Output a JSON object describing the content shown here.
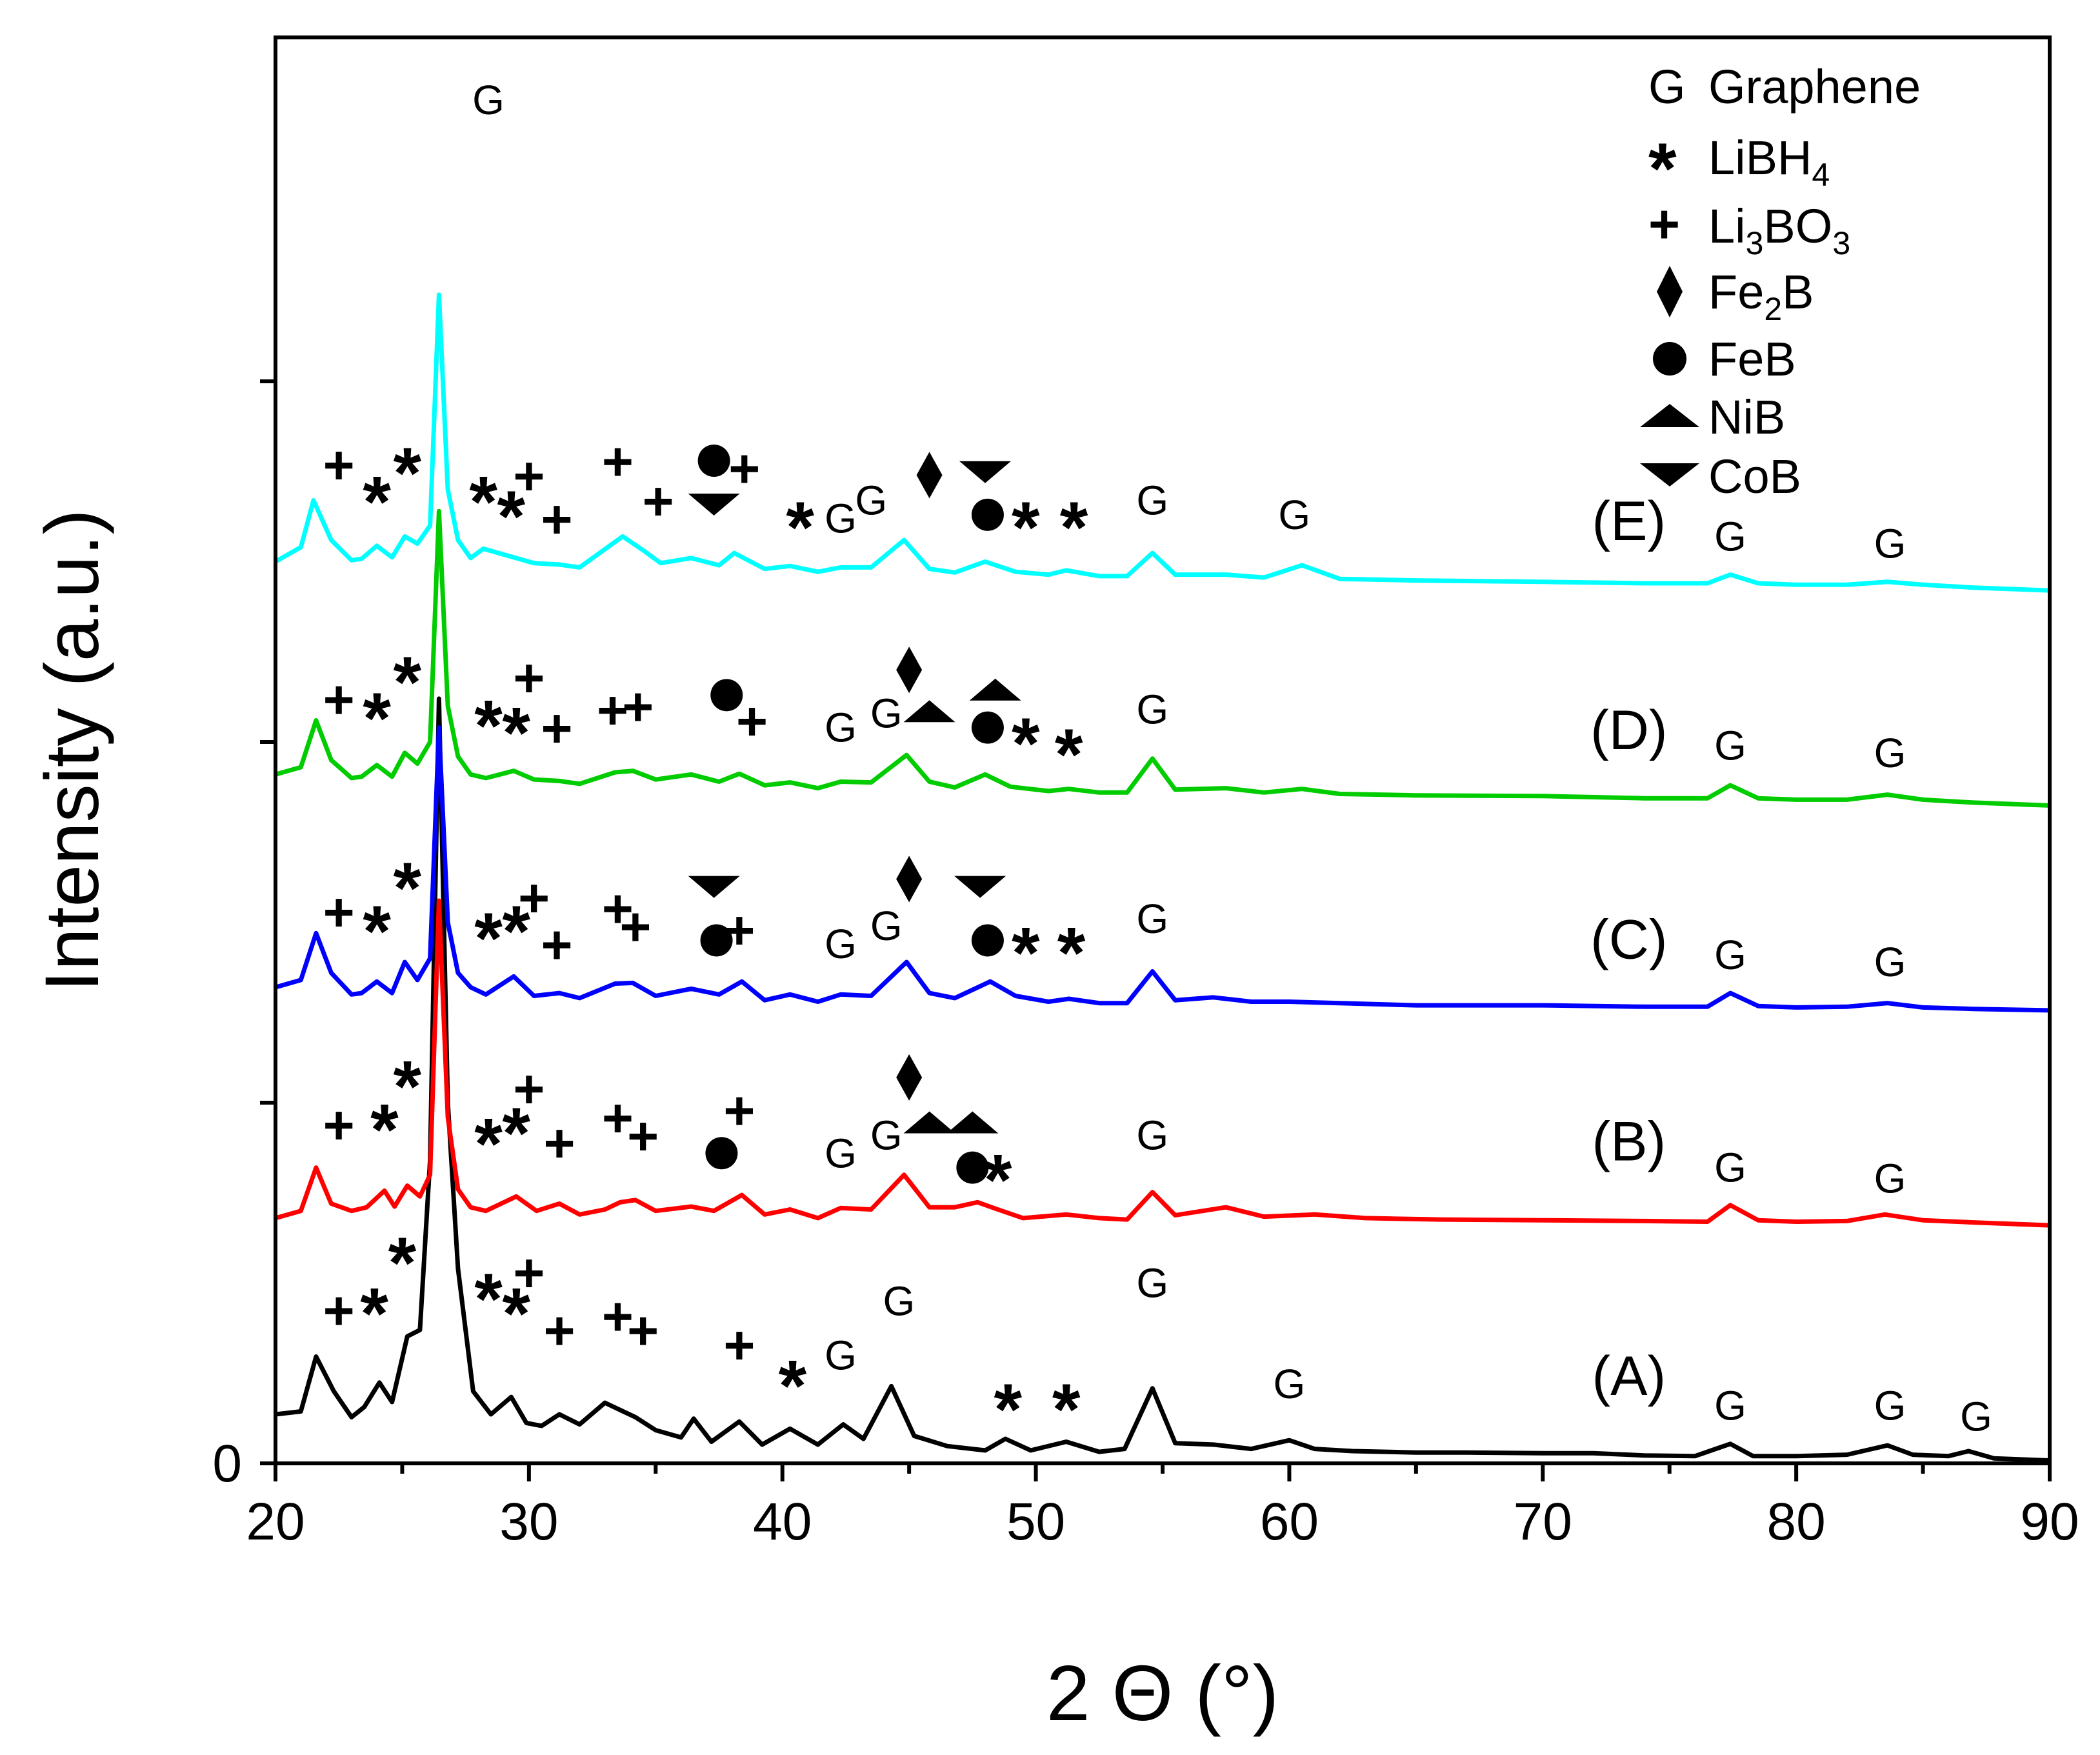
{
  "chart_data": {
    "type": "line",
    "title": "",
    "xlabel": "2 Θ (°)",
    "ylabel": "Intensity (a.u.)",
    "xlim": [
      20,
      90
    ],
    "xticks": [
      20,
      30,
      40,
      50,
      60,
      70,
      80,
      90
    ],
    "ytick_labels": [
      "0"
    ],
    "series": [
      {
        "name": "(A)",
        "color": "#000000",
        "baseline": 0.0,
        "x": [
          20,
          21,
          21.6,
          22.3,
          23,
          23.5,
          24.1,
          24.6,
          25.2,
          25.7,
          26.1,
          26.45,
          26.8,
          27.2,
          27.8,
          28.5,
          29.3,
          29.9,
          30.5,
          31.2,
          32,
          33,
          33.6,
          34.2,
          35,
          36,
          36.5,
          37.2,
          38.3,
          39.2,
          40.3,
          41.4,
          42.4,
          43.2,
          44.3,
          45.2,
          46.5,
          48,
          48.8,
          49.8,
          51.2,
          52.5,
          53.5,
          54.6,
          55.5,
          57,
          58.5,
          60,
          61,
          62.5,
          65,
          67,
          70,
          72,
          74,
          76,
          77.4,
          78.3,
          80,
          82,
          83.6,
          84.6,
          86,
          86.8,
          87.8,
          90
        ],
        "y": [
          0.068,
          0.072,
          0.148,
          0.1,
          0.064,
          0.078,
          0.112,
          0.085,
          0.176,
          0.185,
          0.42,
          1.06,
          0.5,
          0.27,
          0.1,
          0.068,
          0.092,
          0.056,
          0.052,
          0.068,
          0.054,
          0.084,
          0.074,
          0.064,
          0.046,
          0.036,
          0.062,
          0.03,
          0.058,
          0.026,
          0.048,
          0.026,
          0.054,
          0.034,
          0.107,
          0.038,
          0.024,
          0.018,
          0.034,
          0.018,
          0.03,
          0.016,
          0.02,
          0.104,
          0.028,
          0.026,
          0.02,
          0.032,
          0.02,
          0.017,
          0.015,
          0.015,
          0.014,
          0.014,
          0.011,
          0.01,
          0.027,
          0.01,
          0.01,
          0.012,
          0.025,
          0.012,
          0.01,
          0.017,
          0.007,
          0.004
        ]
      },
      {
        "name": "(B)",
        "color": "#ff0000",
        "baseline": 0.34,
        "x": [
          20,
          21,
          21.6,
          22.2,
          23,
          23.6,
          24.3,
          24.7,
          25.2,
          25.7,
          26.1,
          26.45,
          26.8,
          27.2,
          27.7,
          28.3,
          29.5,
          30.3,
          31.2,
          32,
          33,
          33.6,
          34.2,
          35,
          36.4,
          37.3,
          38.4,
          39.3,
          40.3,
          41.4,
          42.3,
          43.5,
          44.8,
          45.8,
          46.8,
          47.7,
          48.5,
          49.5,
          51.2,
          52.5,
          53.6,
          54.6,
          55.5,
          57.5,
          59,
          61,
          63,
          66,
          70,
          74,
          76.5,
          77.4,
          78.5,
          80,
          82,
          83.5,
          85,
          87,
          90
        ],
        "y": [
          0.34,
          0.35,
          0.41,
          0.36,
          0.35,
          0.355,
          0.378,
          0.356,
          0.385,
          0.37,
          0.4,
          0.78,
          0.48,
          0.38,
          0.355,
          0.35,
          0.37,
          0.35,
          0.36,
          0.345,
          0.352,
          0.362,
          0.365,
          0.35,
          0.356,
          0.35,
          0.372,
          0.345,
          0.352,
          0.34,
          0.354,
          0.352,
          0.4,
          0.355,
          0.355,
          0.362,
          0.352,
          0.34,
          0.345,
          0.34,
          0.338,
          0.376,
          0.344,
          0.355,
          0.342,
          0.345,
          0.34,
          0.338,
          0.337,
          0.336,
          0.335,
          0.358,
          0.337,
          0.335,
          0.336,
          0.345,
          0.337,
          0.334,
          0.33
        ]
      },
      {
        "name": "(C)",
        "color": "#0000ff",
        "baseline": 0.62,
        "x": [
          20,
          21,
          21.6,
          22.2,
          23,
          23.4,
          24,
          24.6,
          25.1,
          25.6,
          26.1,
          26.45,
          26.8,
          27.2,
          27.7,
          28.3,
          29.4,
          30.2,
          31.2,
          32,
          33.4,
          34.1,
          35,
          36.4,
          37.5,
          38.4,
          39.3,
          40.3,
          41.4,
          42.3,
          43.5,
          44.9,
          45.8,
          46.8,
          48.2,
          49.2,
          50.5,
          51.3,
          52.5,
          53.6,
          54.6,
          55.5,
          57,
          58.5,
          60,
          62,
          65,
          70,
          74,
          76.5,
          77.4,
          78.5,
          80,
          82,
          83.6,
          85,
          87,
          90
        ],
        "y": [
          0.66,
          0.67,
          0.735,
          0.68,
          0.65,
          0.652,
          0.668,
          0.652,
          0.695,
          0.67,
          0.7,
          1.02,
          0.75,
          0.68,
          0.66,
          0.65,
          0.675,
          0.648,
          0.652,
          0.645,
          0.665,
          0.666,
          0.648,
          0.658,
          0.65,
          0.668,
          0.642,
          0.65,
          0.64,
          0.65,
          0.648,
          0.695,
          0.652,
          0.645,
          0.668,
          0.648,
          0.64,
          0.644,
          0.638,
          0.638,
          0.682,
          0.642,
          0.646,
          0.64,
          0.64,
          0.638,
          0.635,
          0.635,
          0.633,
          0.633,
          0.652,
          0.634,
          0.632,
          0.633,
          0.638,
          0.632,
          0.63,
          0.628
        ]
      },
      {
        "name": "(D)",
        "color": "#00cc00",
        "baseline": 0.9,
        "x": [
          20,
          21,
          21.6,
          22.2,
          23,
          23.4,
          24,
          24.6,
          25.1,
          25.6,
          26.1,
          26.45,
          26.8,
          27.2,
          27.7,
          28.3,
          29.4,
          30.2,
          31.2,
          32,
          33.4,
          34.1,
          35,
          36.4,
          37.5,
          38.3,
          39.3,
          40.3,
          41.4,
          42.3,
          43.5,
          44.9,
          45.8,
          46.8,
          48,
          49,
          50.5,
          51.3,
          52.5,
          53.6,
          54.6,
          55.5,
          57.5,
          59,
          60.5,
          62,
          65,
          70,
          74,
          76.5,
          77.4,
          78.5,
          80,
          82,
          83.6,
          85,
          87,
          90
        ],
        "y": [
          0.955,
          0.965,
          1.03,
          0.975,
          0.95,
          0.952,
          0.968,
          0.952,
          0.985,
          0.97,
          1.0,
          1.32,
          1.05,
          0.98,
          0.955,
          0.95,
          0.96,
          0.948,
          0.946,
          0.942,
          0.958,
          0.96,
          0.948,
          0.955,
          0.945,
          0.956,
          0.94,
          0.944,
          0.936,
          0.945,
          0.944,
          0.982,
          0.945,
          0.937,
          0.955,
          0.938,
          0.932,
          0.935,
          0.93,
          0.93,
          0.977,
          0.934,
          0.936,
          0.93,
          0.935,
          0.928,
          0.926,
          0.925,
          0.922,
          0.922,
          0.94,
          0.922,
          0.92,
          0.92,
          0.927,
          0.92,
          0.916,
          0.912
        ]
      },
      {
        "name": "(E)",
        "color": "#00ffff",
        "baseline": 1.2,
        "x": [
          20,
          21,
          21.5,
          22.2,
          23,
          23.4,
          24,
          24.6,
          25.1,
          25.6,
          26.1,
          26.45,
          26.8,
          27.2,
          27.7,
          28.2,
          29.2,
          30.2,
          31.2,
          32,
          33.7,
          34.5,
          35.2,
          36.4,
          37.5,
          38.1,
          39.3,
          40.3,
          41.4,
          42.3,
          43.5,
          44.8,
          45.8,
          46.8,
          48,
          49.2,
          50.5,
          51.2,
          52.5,
          53.6,
          54.6,
          55.5,
          57.5,
          59,
          60.5,
          62,
          65,
          70,
          74,
          76.5,
          77.4,
          78.5,
          80,
          82,
          83.6,
          85,
          87,
          90
        ],
        "y": [
          1.25,
          1.27,
          1.335,
          1.28,
          1.252,
          1.254,
          1.272,
          1.256,
          1.285,
          1.275,
          1.3,
          1.62,
          1.35,
          1.28,
          1.255,
          1.268,
          1.258,
          1.248,
          1.246,
          1.242,
          1.285,
          1.266,
          1.248,
          1.255,
          1.245,
          1.262,
          1.24,
          1.244,
          1.236,
          1.242,
          1.242,
          1.28,
          1.24,
          1.235,
          1.25,
          1.236,
          1.232,
          1.238,
          1.23,
          1.23,
          1.262,
          1.232,
          1.232,
          1.228,
          1.245,
          1.226,
          1.224,
          1.222,
          1.22,
          1.22,
          1.232,
          1.22,
          1.218,
          1.218,
          1.222,
          1.218,
          1.214,
          1.21
        ]
      }
    ],
    "curve_labels": [
      {
        "text": "(A)",
        "x": 73.4,
        "y": 0.095
      },
      {
        "text": "(B)",
        "x": 73.4,
        "y": 0.42
      },
      {
        "text": "(C)",
        "x": 73.4,
        "y": 0.7
      },
      {
        "text": "(D)",
        "x": 73.4,
        "y": 0.99
      },
      {
        "text": "(E)",
        "x": 73.4,
        "y": 1.28
      }
    ],
    "legend": {
      "placement": "top-right",
      "entries": [
        {
          "symbol": "G",
          "text": "Graphene"
        },
        {
          "symbol": "*",
          "text": "LiBH",
          "sub": "4"
        },
        {
          "symbol": "+",
          "text": "Li",
          "sub": "3",
          "text2": "BO",
          "sub2": "3"
        },
        {
          "symbol": "diamond",
          "text": "Fe",
          "sub": "2",
          "text2": "B"
        },
        {
          "symbol": "circle",
          "text": "FeB"
        },
        {
          "symbol": "triangle-up",
          "text": "NiB"
        },
        {
          "symbol": "triangle-down",
          "text": "CoB"
        }
      ]
    },
    "peak_markers": [
      {
        "s": "G",
        "x": 28.4,
        "y": 1.89
      },
      {
        "s": "+",
        "x": 22.5,
        "y": 0.213
      },
      {
        "s": "*",
        "x": 23.9,
        "y": 0.225
      },
      {
        "s": "*",
        "x": 25.0,
        "y": 0.295
      },
      {
        "s": "*",
        "x": 28.4,
        "y": 0.245
      },
      {
        "s": "*",
        "x": 29.5,
        "y": 0.225
      },
      {
        "s": "+",
        "x": 30.0,
        "y": 0.265
      },
      {
        "s": "+",
        "x": 31.2,
        "y": 0.185
      },
      {
        "s": "+",
        "x": 33.5,
        "y": 0.205
      },
      {
        "s": "+",
        "x": 34.5,
        "y": 0.185
      },
      {
        "s": "+",
        "x": 38.3,
        "y": 0.165
      },
      {
        "s": "*",
        "x": 40.4,
        "y": 0.125
      },
      {
        "s": "G",
        "x": 42.3,
        "y": 0.15
      },
      {
        "s": "G",
        "x": 44.6,
        "y": 0.225
      },
      {
        "s": "*",
        "x": 48.9,
        "y": 0.092
      },
      {
        "s": "*",
        "x": 51.2,
        "y": 0.092
      },
      {
        "s": "G",
        "x": 54.6,
        "y": 0.25
      },
      {
        "s": "G",
        "x": 60.0,
        "y": 0.11
      },
      {
        "s": "G",
        "x": 77.4,
        "y": 0.08
      },
      {
        "s": "G",
        "x": 83.7,
        "y": 0.08
      },
      {
        "s": "G",
        "x": 87.1,
        "y": 0.065
      },
      {
        "s": "+",
        "x": 22.5,
        "y": 0.47
      },
      {
        "s": "*",
        "x": 24.3,
        "y": 0.48
      },
      {
        "s": "*",
        "x": 25.2,
        "y": 0.54
      },
      {
        "s": "*",
        "x": 28.4,
        "y": 0.46
      },
      {
        "s": "*",
        "x": 29.5,
        "y": 0.475
      },
      {
        "s": "+",
        "x": 30.0,
        "y": 0.52
      },
      {
        "s": "+",
        "x": 31.2,
        "y": 0.445
      },
      {
        "s": "+",
        "x": 33.5,
        "y": 0.48
      },
      {
        "s": "+",
        "x": 34.5,
        "y": 0.455
      },
      {
        "s": "+",
        "x": 38.3,
        "y": 0.49
      },
      {
        "s": "circle",
        "x": 37.6,
        "y": 0.43
      },
      {
        "s": "G",
        "x": 42.3,
        "y": 0.43
      },
      {
        "s": "G",
        "x": 44.1,
        "y": 0.455
      },
      {
        "s": "diamond",
        "x": 45.0,
        "y": 0.535
      },
      {
        "s": "triangle-up",
        "x": 45.8,
        "y": 0.47
      },
      {
        "s": "triangle-up",
        "x": 47.5,
        "y": 0.47
      },
      {
        "s": "circle",
        "x": 47.5,
        "y": 0.41
      },
      {
        "s": "*",
        "x": 48.5,
        "y": 0.41
      },
      {
        "s": "G",
        "x": 54.6,
        "y": 0.455
      },
      {
        "s": "G",
        "x": 77.4,
        "y": 0.41
      },
      {
        "s": "G",
        "x": 83.7,
        "y": 0.395
      },
      {
        "s": "+",
        "x": 22.5,
        "y": 0.765
      },
      {
        "s": "*",
        "x": 24.0,
        "y": 0.755
      },
      {
        "s": "*",
        "x": 25.2,
        "y": 0.815
      },
      {
        "s": "*",
        "x": 28.4,
        "y": 0.745
      },
      {
        "s": "*",
        "x": 29.5,
        "y": 0.755
      },
      {
        "s": "+",
        "x": 30.2,
        "y": 0.785
      },
      {
        "s": "+",
        "x": 31.1,
        "y": 0.72
      },
      {
        "s": "+",
        "x": 33.5,
        "y": 0.77
      },
      {
        "s": "+",
        "x": 34.2,
        "y": 0.745
      },
      {
        "s": "triangle-down",
        "x": 37.3,
        "y": 0.8
      },
      {
        "s": "circle",
        "x": 37.4,
        "y": 0.725
      },
      {
        "s": "+",
        "x": 38.3,
        "y": 0.74
      },
      {
        "s": "G",
        "x": 42.3,
        "y": 0.72
      },
      {
        "s": "G",
        "x": 44.1,
        "y": 0.745
      },
      {
        "s": "diamond",
        "x": 45.0,
        "y": 0.81
      },
      {
        "s": "triangle-down",
        "x": 47.8,
        "y": 0.8
      },
      {
        "s": "circle",
        "x": 48.1,
        "y": 0.725
      },
      {
        "s": "*",
        "x": 49.6,
        "y": 0.725
      },
      {
        "s": "*",
        "x": 51.4,
        "y": 0.725
      },
      {
        "s": "G",
        "x": 54.6,
        "y": 0.755
      },
      {
        "s": "G",
        "x": 77.4,
        "y": 0.705
      },
      {
        "s": "G",
        "x": 83.7,
        "y": 0.695
      },
      {
        "s": "+",
        "x": 22.5,
        "y": 1.06
      },
      {
        "s": "*",
        "x": 24.0,
        "y": 1.05
      },
      {
        "s": "*",
        "x": 25.2,
        "y": 1.1
      },
      {
        "s": "*",
        "x": 28.4,
        "y": 1.04
      },
      {
        "s": "*",
        "x": 29.5,
        "y": 1.03
      },
      {
        "s": "+",
        "x": 30.0,
        "y": 1.09
      },
      {
        "s": "+",
        "x": 31.1,
        "y": 1.02
      },
      {
        "s": "+",
        "x": 33.3,
        "y": 1.045
      },
      {
        "s": "+",
        "x": 34.3,
        "y": 1.05
      },
      {
        "s": "circle",
        "x": 37.8,
        "y": 1.065
      },
      {
        "s": "+",
        "x": 38.8,
        "y": 1.03
      },
      {
        "s": "G",
        "x": 42.3,
        "y": 1.02
      },
      {
        "s": "G",
        "x": 44.1,
        "y": 1.04
      },
      {
        "s": "diamond",
        "x": 45.0,
        "y": 1.1
      },
      {
        "s": "triangle-up",
        "x": 45.8,
        "y": 1.04
      },
      {
        "s": "triangle-up",
        "x": 48.4,
        "y": 1.07
      },
      {
        "s": "circle",
        "x": 48.1,
        "y": 1.02
      },
      {
        "s": "*",
        "x": 49.6,
        "y": 1.015
      },
      {
        "s": "*",
        "x": 51.3,
        "y": 1.0
      },
      {
        "s": "G",
        "x": 54.6,
        "y": 1.045
      },
      {
        "s": "G",
        "x": 77.4,
        "y": 0.995
      },
      {
        "s": "G",
        "x": 83.7,
        "y": 0.985
      },
      {
        "s": "+",
        "x": 22.5,
        "y": 1.385
      },
      {
        "s": "*",
        "x": 24.0,
        "y": 1.35
      },
      {
        "s": "*",
        "x": 25.2,
        "y": 1.39
      },
      {
        "s": "*",
        "x": 28.2,
        "y": 1.35
      },
      {
        "s": "*",
        "x": 29.3,
        "y": 1.33
      },
      {
        "s": "+",
        "x": 30.0,
        "y": 1.37
      },
      {
        "s": "+",
        "x": 31.1,
        "y": 1.31
      },
      {
        "s": "+",
        "x": 33.5,
        "y": 1.39
      },
      {
        "s": "+",
        "x": 35.1,
        "y": 1.335
      },
      {
        "s": "circle",
        "x": 37.3,
        "y": 1.39
      },
      {
        "s": "triangle-down",
        "x": 37.3,
        "y": 1.33
      },
      {
        "s": "+",
        "x": 38.5,
        "y": 1.38
      },
      {
        "s": "*",
        "x": 40.7,
        "y": 1.315
      },
      {
        "s": "G",
        "x": 42.3,
        "y": 1.31
      },
      {
        "s": "G",
        "x": 43.5,
        "y": 1.335
      },
      {
        "s": "diamond",
        "x": 45.8,
        "y": 1.37
      },
      {
        "s": "triangle-down",
        "x": 48.0,
        "y": 1.375
      },
      {
        "s": "circle",
        "x": 48.1,
        "y": 1.315
      },
      {
        "s": "*",
        "x": 49.6,
        "y": 1.315
      },
      {
        "s": "*",
        "x": 51.5,
        "y": 1.315
      },
      {
        "s": "G",
        "x": 54.6,
        "y": 1.335
      },
      {
        "s": "G",
        "x": 60.2,
        "y": 1.315
      },
      {
        "s": "G",
        "x": 77.4,
        "y": 1.285
      },
      {
        "s": "G",
        "x": 83.7,
        "y": 1.275
      }
    ]
  }
}
